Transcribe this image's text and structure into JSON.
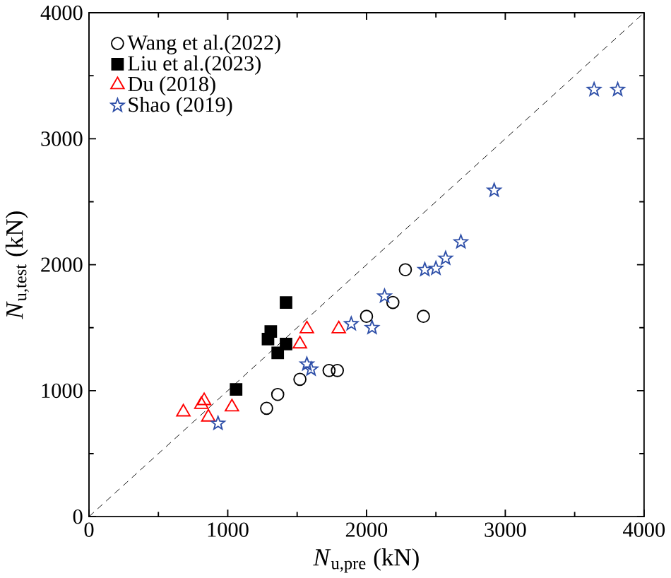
{
  "chart_data": {
    "type": "scatter",
    "xlabel": "*N*$_{u,pre}$ (kN)",
    "ylabel": "*N*$_{u,test}$ (kN)",
    "xlim": [
      0,
      4000
    ],
    "ylim": [
      0,
      4000
    ],
    "xticks": [
      0,
      1000,
      2000,
      3000,
      4000
    ],
    "yticks": [
      0,
      1000,
      2000,
      3000,
      4000
    ],
    "legend": "top left",
    "grid": false,
    "series": [
      {
        "name": "Wang et al.(2022)",
        "color": "#000000",
        "marker": "circle",
        "x": [
          1280,
          1360,
          1520,
          1730,
          1790,
          2000,
          2190,
          2280,
          2410
        ],
        "values": [
          860,
          970,
          1090,
          1160,
          1160,
          1590,
          1700,
          1960,
          1590
        ]
      },
      {
        "name": "Liu et al.(2023)",
        "color": "#000000",
        "marker": "square",
        "x": [
          1420,
          1310,
          1290,
          1420,
          1360,
          1060
        ],
        "values": [
          1700,
          1470,
          1410,
          1370,
          1300,
          1010
        ]
      },
      {
        "name": "Du (2018)",
        "color": "#ff0000",
        "marker": "triangle",
        "x": [
          680,
          830,
          810,
          860,
          1030,
          1570,
          1520,
          1800
        ],
        "values": [
          830,
          920,
          890,
          790,
          870,
          1490,
          1370,
          1490
        ]
      },
      {
        "name": "Shao (2019)",
        "color": "#2e4fa8",
        "marker": "star",
        "x": [
          930,
          1570,
          1600,
          1890,
          2040,
          2130,
          2420,
          2500,
          2570,
          2680,
          2920,
          3640,
          3810
        ],
        "values": [
          740,
          1210,
          1170,
          1530,
          1500,
          1750,
          1960,
          1970,
          2050,
          2180,
          2590,
          3390,
          3390
        ]
      },
      {
        "type": "line",
        "color": "#000000",
        "line_style": "dashed",
        "marker": "none",
        "x": [
          0,
          4000
        ],
        "values": [
          0,
          4000
        ]
      }
    ]
  }
}
